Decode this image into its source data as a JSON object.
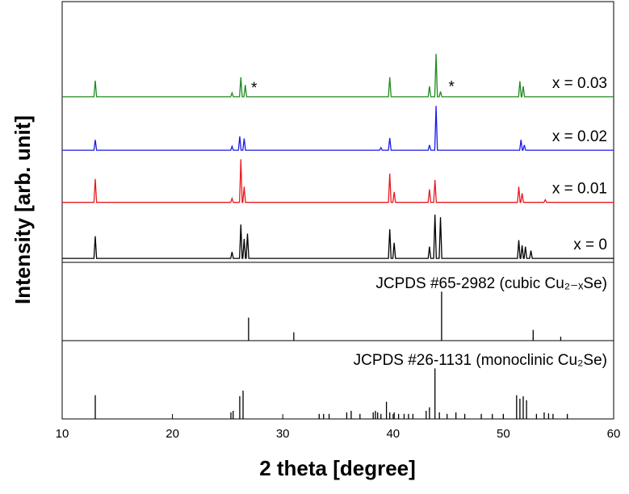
{
  "chart_data": [
    {
      "type": "line",
      "ylabel": "Intensity [arb. unit]",
      "xlim": [
        10,
        60
      ],
      "ylim": [
        0,
        100
      ],
      "series": [
        {
          "name": "x = 0",
          "color": "#000000",
          "x": [
            10,
            12.88,
            13,
            13.12,
            25.28,
            25.4,
            25.52,
            26.08,
            26.2,
            26.32,
            26.38,
            26.5,
            26.62,
            26.68,
            26.8,
            26.92,
            39.58,
            39.7,
            39.82,
            39.98,
            40.1,
            40.22,
            43.18,
            43.3,
            43.42,
            43.68,
            43.8,
            43.92,
            44.18,
            44.3,
            44.42,
            51.28,
            51.4,
            51.52,
            51.58,
            51.7,
            51.82,
            51.88,
            52,
            52.12,
            52.38,
            52.5,
            52.62,
            60
          ],
          "values": [
            1.5,
            1.5,
            10,
            1.5,
            1.5,
            4,
            1.5,
            1.5,
            14.5,
            1.5,
            1.5,
            9,
            1.5,
            1.5,
            11,
            1.5,
            1.5,
            12.7,
            1.5,
            1.5,
            7.5,
            1.5,
            1.5,
            6,
            1.5,
            1.5,
            18.3,
            1.5,
            1.5,
            17.3,
            1.5,
            1.5,
            8.5,
            1.5,
            1.5,
            6.5,
            1.5,
            1.5,
            6,
            1.5,
            1.5,
            4.5,
            1.5,
            1.5
          ]
        },
        {
          "name": "x = 0.01",
          "color": "#e8191e",
          "x": [
            10,
            12.88,
            13,
            13.12,
            25.28,
            25.4,
            25.52,
            26.08,
            26.2,
            26.32,
            26.38,
            26.5,
            26.62,
            39.58,
            39.7,
            39.82,
            39.98,
            40.1,
            40.22,
            43.18,
            43.3,
            43.42,
            43.68,
            43.8,
            43.92,
            51.28,
            51.4,
            51.52,
            51.58,
            51.7,
            51.82,
            53.68,
            53.8,
            53.92,
            60
          ],
          "values": [
            23,
            23,
            32,
            23,
            23,
            24.5,
            23,
            23,
            39.5,
            23,
            23,
            29,
            23,
            23,
            34,
            23,
            23,
            27,
            23,
            23,
            28,
            23,
            23,
            31.6,
            23,
            23,
            29,
            23,
            23,
            26.5,
            23,
            23,
            24,
            23,
            23
          ]
        },
        {
          "name": "x = 0.02",
          "color": "#1a1ae6",
          "x": [
            10,
            12.88,
            13,
            13.12,
            25.28,
            25.4,
            25.52,
            25.98,
            26.1,
            26.22,
            26.38,
            26.5,
            26.62,
            38.78,
            38.9,
            39.02,
            39.58,
            39.7,
            39.82,
            43.18,
            43.3,
            43.42,
            43.78,
            43.9,
            44.02,
            51.48,
            51.6,
            51.72,
            51.78,
            51.9,
            52.02,
            60
          ],
          "values": [
            43,
            43,
            47,
            43,
            43,
            44.5,
            43,
            43,
            48.3,
            43,
            43,
            47.5,
            43,
            43,
            44,
            43,
            43,
            47.7,
            43,
            43,
            45,
            43,
            43,
            60,
            43,
            43,
            47,
            43,
            43,
            45,
            43,
            43
          ]
        },
        {
          "name": "x = 0.03",
          "color": "#1f8a1f",
          "x": [
            10,
            12.88,
            13,
            13.12,
            25.28,
            25.4,
            25.52,
            26.08,
            26.2,
            26.32,
            26.48,
            26.6,
            26.72,
            39.58,
            39.7,
            39.82,
            43.18,
            43.3,
            43.42,
            43.78,
            43.9,
            44.02,
            44.18,
            44.3,
            44.42,
            51.38,
            51.5,
            51.62,
            51.68,
            51.8,
            51.92,
            60
          ],
          "values": [
            63.5,
            63.5,
            69.7,
            63.5,
            63.5,
            65,
            63.5,
            63.5,
            71,
            63.5,
            63.5,
            68,
            63.5,
            63.5,
            71,
            63.5,
            63.5,
            67.5,
            63.5,
            63.5,
            80,
            63.5,
            63.5,
            65.5,
            63.5,
            63.5,
            69.5,
            63.5,
            63.5,
            67.5,
            63.5,
            63.5
          ]
        }
      ],
      "annotations": [
        {
          "text": "*",
          "x": 27.4,
          "y": 66.6,
          "color": "#e8191e"
        },
        {
          "text": "*",
          "x": 45.3,
          "y": 67,
          "color": "#e8191e"
        }
      ]
    },
    {
      "type": "stem",
      "title": "JCPDS #65-2982 (cubic Cu₂₋ₓSe)",
      "color": "#000000",
      "xlim": [
        10,
        60
      ],
      "ylim": [
        0,
        160
      ],
      "x": [
        26.9,
        31.0,
        44.4,
        52.7,
        55.2
      ],
      "values": [
        47,
        17,
        100,
        22,
        8
      ]
    },
    {
      "type": "stem",
      "title": "JCPDS #26-1131 (monoclinic Cu₂Se)",
      "color": "#000000",
      "xlim": [
        10,
        60
      ],
      "ylim": [
        0,
        155
      ],
      "x": [
        13.0,
        25.3,
        25.5,
        26.1,
        26.4,
        33.3,
        33.7,
        34.2,
        35.8,
        36.2,
        37.0,
        38.2,
        38.4,
        38.6,
        38.9,
        39.4,
        39.7,
        40.1,
        40.5,
        41.0,
        41.4,
        41.8,
        43.0,
        43.3,
        43.8,
        44.2,
        44.9,
        45.7,
        46.5,
        48.0,
        49.0,
        50.0,
        51.2,
        51.5,
        51.8,
        52.1,
        53.0,
        53.7,
        54.1,
        54.5,
        55.8
      ],
      "values": [
        47,
        13,
        16,
        45,
        56,
        10,
        10,
        10,
        13,
        16,
        10,
        13,
        16,
        13,
        10,
        34,
        13,
        13,
        10,
        10,
        10,
        10,
        16,
        23,
        100,
        13,
        10,
        13,
        10,
        10,
        10,
        10,
        47,
        40,
        45,
        37,
        10,
        13,
        11,
        10,
        10
      ],
      "xlabel": "2 theta [degree]",
      "xticks": [
        10,
        20,
        30,
        40,
        50,
        60
      ]
    }
  ]
}
